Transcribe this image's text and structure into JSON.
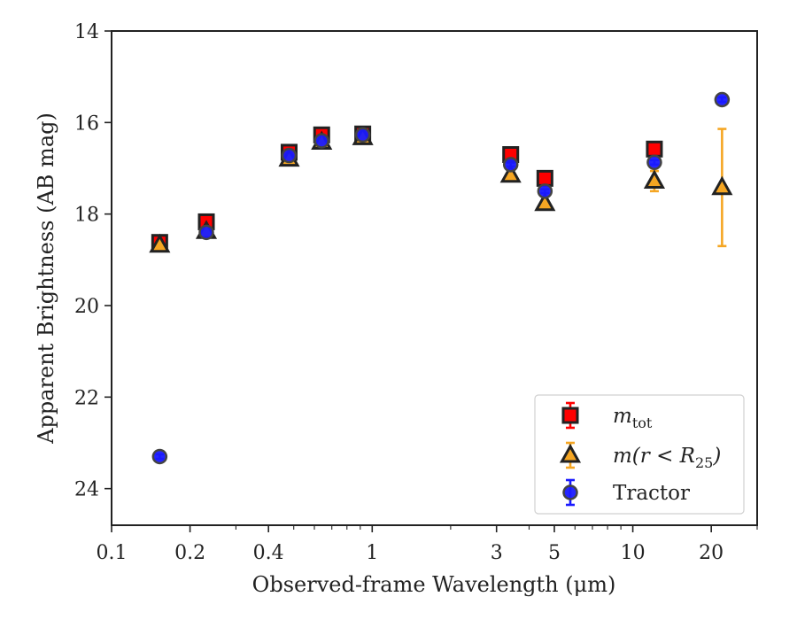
{
  "chart_data": {
    "type": "scatter",
    "xlabel": "Observed-frame Wavelength (μm)",
    "ylabel": "Apparent Brightness (AB mag)",
    "x_scale": "log",
    "xlim": [
      0.1,
      30
    ],
    "ylim": [
      24.8,
      14
    ],
    "y_inverted": true,
    "grid": false,
    "legend_position": "lower-right",
    "x_ticks": [
      {
        "value": 0.1,
        "label": "0.1"
      },
      {
        "value": 0.2,
        "label": "0.2"
      },
      {
        "value": 0.4,
        "label": "0.4"
      },
      {
        "value": 1,
        "label": "1"
      },
      {
        "value": 3,
        "label": "3"
      },
      {
        "value": 5,
        "label": "5"
      },
      {
        "value": 10,
        "label": "10"
      },
      {
        "value": 20,
        "label": "20"
      }
    ],
    "y_ticks": [
      {
        "value": 14,
        "label": "14"
      },
      {
        "value": 16,
        "label": "16"
      },
      {
        "value": 18,
        "label": "18"
      },
      {
        "value": 20,
        "label": "20"
      },
      {
        "value": 22,
        "label": "22"
      },
      {
        "value": 24,
        "label": "24"
      }
    ],
    "series": [
      {
        "name": "m_tot",
        "legend_label_base": "m",
        "legend_label_sub": "tot",
        "marker": "square",
        "face_color": "#ff0000",
        "edge_color": "#222222",
        "error_color": "#ff0000",
        "points": [
          {
            "x": 0.153,
            "y": 18.62,
            "err": 0.05
          },
          {
            "x": 0.231,
            "y": 18.17,
            "err": 0.04
          },
          {
            "x": 0.48,
            "y": 16.65,
            "err": 0.03
          },
          {
            "x": 0.64,
            "y": 16.27,
            "err": 0.03
          },
          {
            "x": 0.92,
            "y": 16.25,
            "err": 0.03
          },
          {
            "x": 3.4,
            "y": 16.7,
            "err": 0.03
          },
          {
            "x": 4.6,
            "y": 17.22,
            "err": 0.03
          },
          {
            "x": 12.1,
            "y": 16.58,
            "err": 0.05
          }
        ]
      },
      {
        "name": "m(r < R_25)",
        "legend_label_base": "m(r < R",
        "legend_label_sub": "25",
        "legend_label_tail": ")",
        "marker": "triangle",
        "face_color": "#f5a623",
        "edge_color": "#222222",
        "error_color": "#f5a623",
        "points": [
          {
            "x": 0.153,
            "y": 18.68,
            "err": 0.05
          },
          {
            "x": 0.231,
            "y": 18.38,
            "err": 0.04
          },
          {
            "x": 0.48,
            "y": 16.8,
            "err": 0.03
          },
          {
            "x": 0.64,
            "y": 16.43,
            "err": 0.03
          },
          {
            "x": 0.92,
            "y": 16.33,
            "err": 0.03
          },
          {
            "x": 3.4,
            "y": 17.15,
            "err": 0.05
          },
          {
            "x": 4.6,
            "y": 17.77,
            "err": 0.05
          },
          {
            "x": 12.1,
            "y": 17.28,
            "err": 0.22
          },
          {
            "x": 22.0,
            "y": 17.42,
            "err": 1.28
          }
        ]
      },
      {
        "name": "Tractor",
        "marker": "circle",
        "face_color": "#1a1aff",
        "edge_color": "#444444",
        "error_color": "#1a1aff",
        "points": [
          {
            "x": 0.153,
            "y": 23.3,
            "err": 0.05
          },
          {
            "x": 0.231,
            "y": 18.4,
            "err": 0.04
          },
          {
            "x": 0.48,
            "y": 16.72,
            "err": 0.03
          },
          {
            "x": 0.64,
            "y": 16.4,
            "err": 0.03
          },
          {
            "x": 0.92,
            "y": 16.27,
            "err": 0.03
          },
          {
            "x": 3.4,
            "y": 16.92,
            "err": 0.04
          },
          {
            "x": 4.6,
            "y": 17.5,
            "err": 0.04
          },
          {
            "x": 12.1,
            "y": 16.87,
            "err": 0.05
          },
          {
            "x": 22.0,
            "y": 15.5,
            "err": 0.05
          }
        ]
      }
    ]
  }
}
